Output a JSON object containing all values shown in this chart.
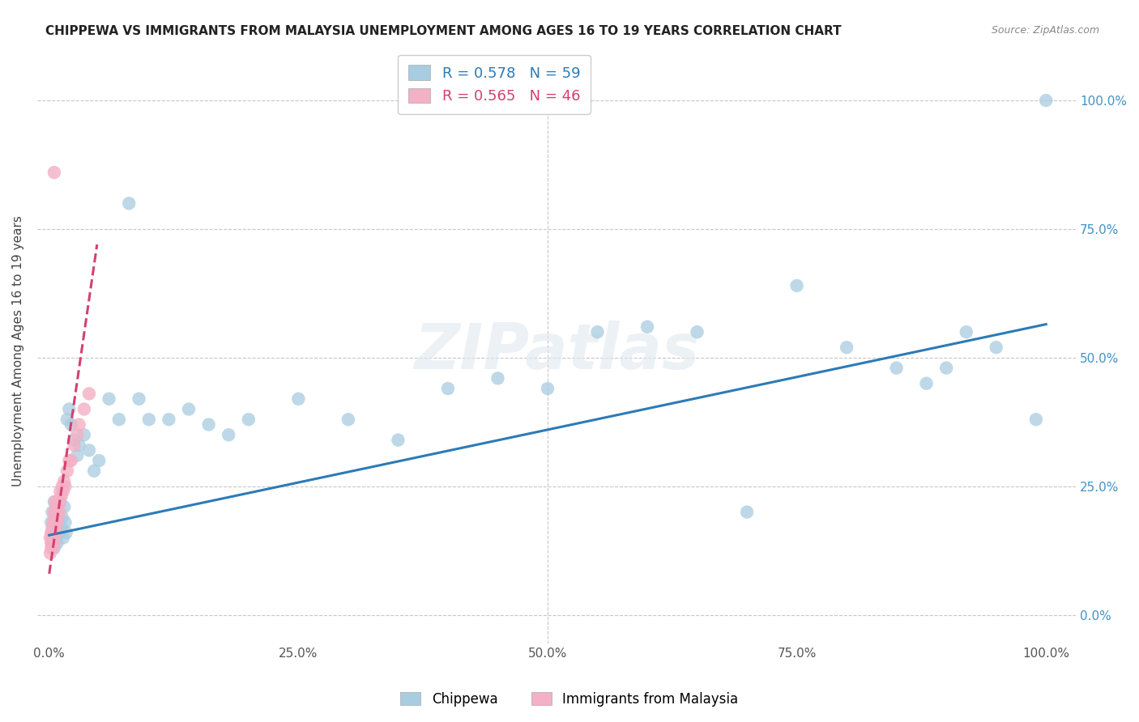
{
  "title": "CHIPPEWA VS IMMIGRANTS FROM MALAYSIA UNEMPLOYMENT AMONG AGES 16 TO 19 YEARS CORRELATION CHART",
  "source": "Source: ZipAtlas.com",
  "ylabel": "Unemployment Among Ages 16 to 19 years",
  "legend_label_blue": "Chippewa",
  "legend_label_pink": "Immigrants from Malaysia",
  "r_blue": "0.578",
  "n_blue": "59",
  "r_pink": "0.565",
  "n_pink": "46",
  "color_blue_fill": "#a8cce0",
  "color_pink_fill": "#f4b0c5",
  "color_blue_line": "#2c7bb6",
  "color_pink_line": "#d44070",
  "color_grid": "#c8c8c8",
  "color_right_axis_tick": "#4292c6",
  "background": "#ffffff",
  "blue_x": [
    0.002,
    0.003,
    0.003,
    0.004,
    0.005,
    0.005,
    0.006,
    0.006,
    0.007,
    0.008,
    0.009,
    0.01,
    0.01,
    0.011,
    0.012,
    0.013,
    0.014,
    0.015,
    0.016,
    0.017,
    0.018,
    0.02,
    0.022,
    0.025,
    0.028,
    0.03,
    0.035,
    0.04,
    0.045,
    0.05,
    0.06,
    0.07,
    0.08,
    0.09,
    0.1,
    0.12,
    0.14,
    0.16,
    0.18,
    0.2,
    0.25,
    0.3,
    0.35,
    0.4,
    0.45,
    0.5,
    0.55,
    0.6,
    0.65,
    0.7,
    0.75,
    0.8,
    0.85,
    0.88,
    0.9,
    0.92,
    0.95,
    0.99,
    1.0
  ],
  "blue_y": [
    0.18,
    0.14,
    0.2,
    0.16,
    0.22,
    0.13,
    0.17,
    0.19,
    0.15,
    0.14,
    0.18,
    0.2,
    0.16,
    0.22,
    0.17,
    0.19,
    0.15,
    0.21,
    0.18,
    0.16,
    0.38,
    0.4,
    0.37,
    0.34,
    0.31,
    0.33,
    0.35,
    0.32,
    0.28,
    0.3,
    0.42,
    0.38,
    0.8,
    0.42,
    0.38,
    0.38,
    0.4,
    0.37,
    0.35,
    0.38,
    0.42,
    0.38,
    0.34,
    0.44,
    0.46,
    0.44,
    0.55,
    0.56,
    0.55,
    0.2,
    0.64,
    0.52,
    0.48,
    0.45,
    0.48,
    0.55,
    0.52,
    0.38,
    1.0
  ],
  "pink_x": [
    0.001,
    0.001,
    0.002,
    0.002,
    0.002,
    0.003,
    0.003,
    0.003,
    0.004,
    0.004,
    0.004,
    0.004,
    0.005,
    0.005,
    0.005,
    0.005,
    0.005,
    0.006,
    0.006,
    0.006,
    0.006,
    0.007,
    0.007,
    0.007,
    0.008,
    0.008,
    0.008,
    0.009,
    0.009,
    0.01,
    0.01,
    0.011,
    0.012,
    0.013,
    0.014,
    0.015,
    0.016,
    0.018,
    0.02,
    0.022,
    0.025,
    0.028,
    0.03,
    0.035,
    0.04,
    0.005
  ],
  "pink_y": [
    0.15,
    0.12,
    0.14,
    0.16,
    0.13,
    0.15,
    0.17,
    0.14,
    0.16,
    0.18,
    0.15,
    0.13,
    0.16,
    0.18,
    0.14,
    0.2,
    0.16,
    0.18,
    0.2,
    0.22,
    0.17,
    0.19,
    0.21,
    0.16,
    0.2,
    0.22,
    0.18,
    0.21,
    0.19,
    0.22,
    0.2,
    0.24,
    0.23,
    0.25,
    0.24,
    0.26,
    0.25,
    0.28,
    0.3,
    0.3,
    0.33,
    0.35,
    0.37,
    0.4,
    0.43,
    0.86
  ],
  "blue_line_x": [
    0.0,
    1.0
  ],
  "blue_line_y": [
    0.155,
    0.565
  ],
  "pink_line_x0": 0.0,
  "pink_line_x1": 0.048,
  "pink_line_y0": 0.08,
  "pink_line_y1": 0.72,
  "xlim_lo": -0.012,
  "xlim_hi": 1.03,
  "ylim_lo": -0.055,
  "ylim_hi": 1.08,
  "yticks": [
    0.0,
    0.25,
    0.5,
    0.75,
    1.0
  ],
  "xticks": [
    0.0,
    0.25,
    0.5,
    0.75,
    1.0
  ],
  "right_ytick_labels": [
    "0.0%",
    "25.0%",
    "50.0%",
    "75.0%",
    "100.0%"
  ],
  "xtick_labels": [
    "0.0%",
    "25.0%",
    "50.0%",
    "75.0%",
    "100.0%"
  ]
}
